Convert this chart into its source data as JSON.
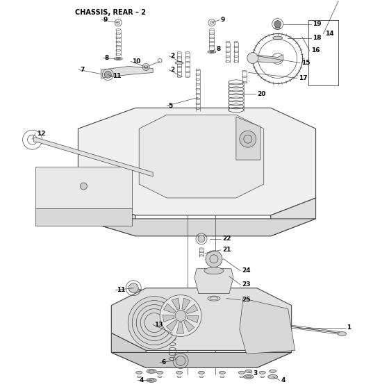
{
  "title": "CHASSIS, REAR – 2",
  "bg": "#ffffff",
  "lc": "#444444",
  "tc": "#000000",
  "figsize": [
    5.6,
    5.6
  ],
  "dpi": 100
}
